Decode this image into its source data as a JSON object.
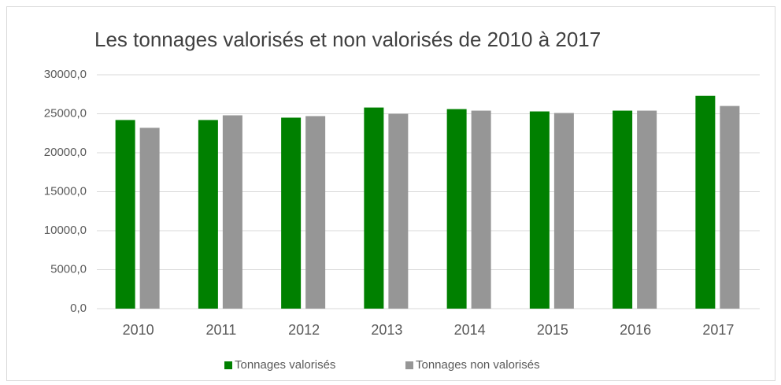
{
  "chart_data": {
    "type": "bar",
    "title": "Les tonnages valorisés et non valorisés de 2010 à 2017",
    "categories": [
      "2010",
      "2011",
      "2012",
      "2013",
      "2014",
      "2015",
      "2016",
      "2017"
    ],
    "series": [
      {
        "name": "Tonnages valorisés",
        "color": "#008000",
        "values": [
          24200,
          24200,
          24500,
          25800,
          25600,
          25300,
          25400,
          27300
        ]
      },
      {
        "name": "Tonnages non valorisés",
        "color": "#969696",
        "values": [
          23200,
          24800,
          24700,
          25000,
          25400,
          25100,
          25400,
          26000
        ]
      }
    ],
    "ylim": [
      0,
      30000
    ],
    "yticks": [
      {
        "value": 0,
        "label": "0,0"
      },
      {
        "value": 5000,
        "label": "5000,0"
      },
      {
        "value": 10000,
        "label": "10000,0"
      },
      {
        "value": 15000,
        "label": "15000,0"
      },
      {
        "value": 20000,
        "label": "20000,0"
      },
      {
        "value": 25000,
        "label": "25000,0"
      },
      {
        "value": 30000,
        "label": "30000,0"
      }
    ],
    "grid": true,
    "legend": "bottom"
  }
}
